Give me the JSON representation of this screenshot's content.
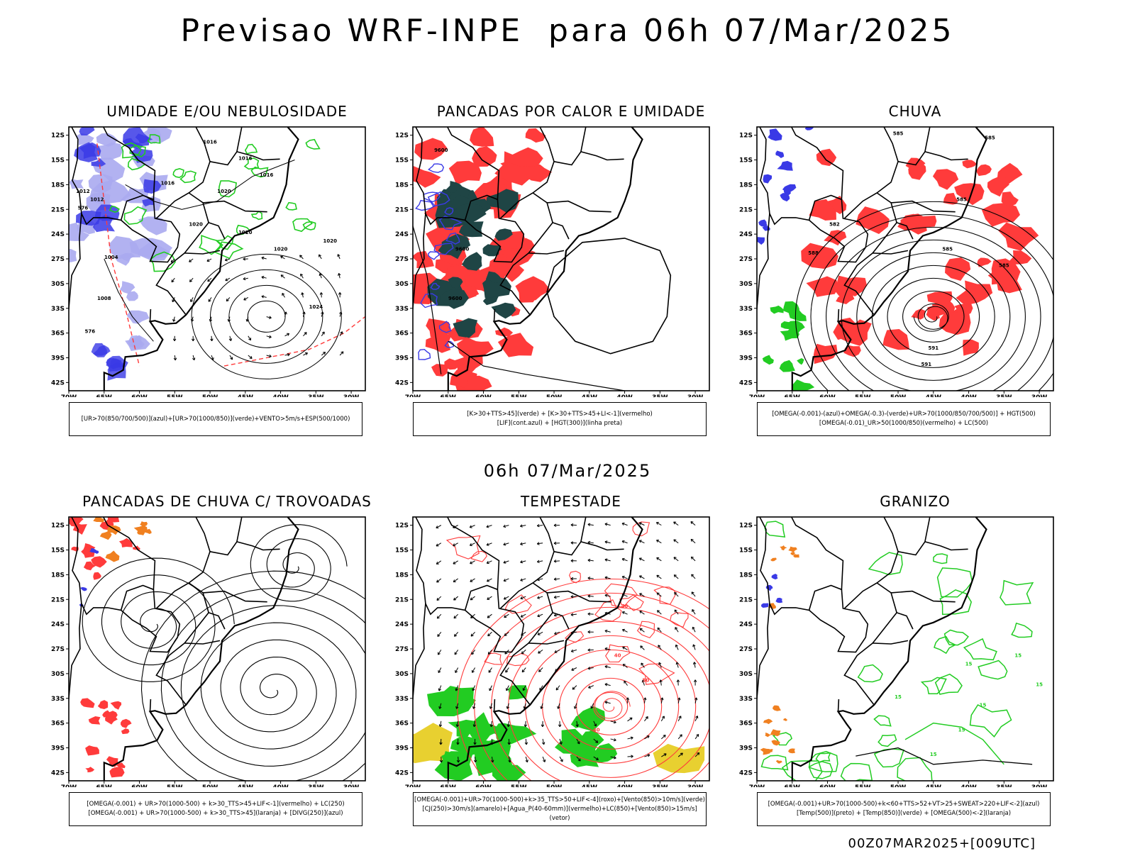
{
  "main_title": "Previsao WRF-INPE  para 06h 07/Mar/2025",
  "mid_date": "06h 07/Mar/2025",
  "footer": "00Z07MAR2025+[009UTC]",
  "axes": {
    "lat_labels": [
      "12S",
      "15S",
      "18S",
      "21S",
      "24S",
      "27S",
      "30S",
      "33S",
      "36S",
      "39S",
      "42S"
    ],
    "lon_labels": [
      "70W",
      "65W",
      "60W",
      "55W",
      "50W",
      "45W",
      "40W",
      "35W",
      "30W"
    ]
  },
  "colors": {
    "blue": "#3a3ae6",
    "lightblue": "#aaaaf0",
    "green": "#22cc22",
    "red": "#ff3b3b",
    "darkteal": "#1f4545",
    "orange": "#f08020",
    "yellow": "#e8d030"
  },
  "panels": [
    {
      "title": "UMIDADE E/OU NEBULOSIDADE",
      "legend": [
        "[UR>70(850/700/500)](azul)+[UR>70(1000/850)](verde)+VENTO>5m/s+ESP(500/1000)"
      ],
      "labels": [
        "1016",
        "1016",
        "1016",
        "1016",
        "1020",
        "1020",
        "1020",
        "1020",
        "1020",
        "1024",
        "1012",
        "1012",
        "1008",
        "1004",
        "576",
        "576"
      ]
    },
    {
      "title": "PANCADAS POR CALOR E UMIDADE",
      "legend": [
        "[K>30+TTS>45](verde) + [K>30+TTS>45+LI<-1](vermelho)",
        "[LIF](cont.azul) + [HGT(300)](linha preta)"
      ],
      "labels": [
        "9600",
        "9600",
        "9600"
      ]
    },
    {
      "title": "CHUVA",
      "legend": [
        "[OMEGA(-0.001)-(azul)+OMEGA(-0.3)-(verde)+UR>70(1000/850/700/500)] + HGT(500)",
        "[OMEGA(-0.01)_UR>50(1000/850)(vermelho) + LC(500)"
      ],
      "labels": [
        "585",
        "585",
        "585",
        "585",
        "585",
        "582",
        "588",
        "591",
        "591"
      ]
    },
    {
      "title": "PANCADAS DE CHUVA C/ TROVOADAS",
      "legend": [
        "[OMEGA(-0.001) + UR>70(1000-500) + k>30_TTS>45+LIF<-1](vermelho) + LC(250)",
        "[OMEGA(-0.001) + UR>70(1000-500) + k>30_TTS>45](laranja) + [DIVG(250)](azul)"
      ],
      "labels": []
    },
    {
      "title": "TEMPESTADE",
      "legend": [
        "[OMEGA(-0.001)+UR>70(1000-500)+k>35_TTS>50+LIF<-4](roxo)+[Vento(850)>10m/s](verde)",
        "[CJ(250)>30m/s](amarelo)+[Agua_P(40-60mm)](vermelho)+LC(850)+[Vento(850)>15m/s](vetor)"
      ],
      "labels": [
        "40",
        "40",
        "40",
        "50"
      ]
    },
    {
      "title": "GRANIZO",
      "legend": [
        "[OMEGA(-0.001)+UR>70(1000-500)+k<60+TTS>52+VT>25+SWEAT>220+LIF<-2](azul)",
        "[Temp(500)](preto) + [Temp(850)](verde) + [OMEGA(500)<-2](laranja)"
      ],
      "labels": [
        "15",
        "15",
        "15",
        "15",
        "15",
        "15",
        "15"
      ]
    }
  ]
}
